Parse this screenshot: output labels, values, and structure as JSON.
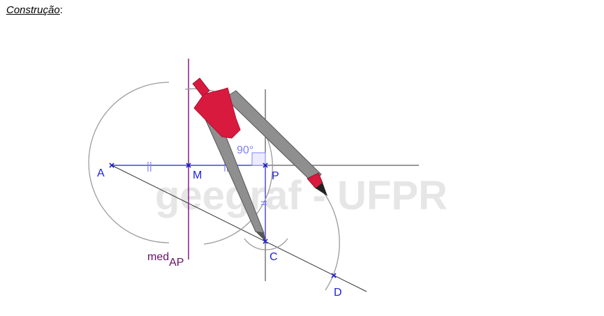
{
  "heading": {
    "text": "Construção",
    "suffix": ":"
  },
  "watermark": "geegraf - UFPR",
  "colors": {
    "points": "#1f1fd6",
    "mediatrix": "#8a2b8f",
    "mediatrix_label": "#6a0f6a",
    "arcs": "#9a9a9a",
    "lines": "#333333",
    "angle": "#8080ff",
    "compass_head": "#d91a3f",
    "compass_leg": "#8f8f8f"
  },
  "points": {
    "A": "A",
    "M": "M",
    "P": "P",
    "C": "C",
    "D": "D"
  },
  "mediatrix_label": {
    "main": "med",
    "sub": "AP"
  },
  "angle_label": "90°",
  "equal_marks": {
    "AM": "||",
    "MP": "||",
    "PC": "="
  },
  "icons": [
    "compass-icon"
  ]
}
